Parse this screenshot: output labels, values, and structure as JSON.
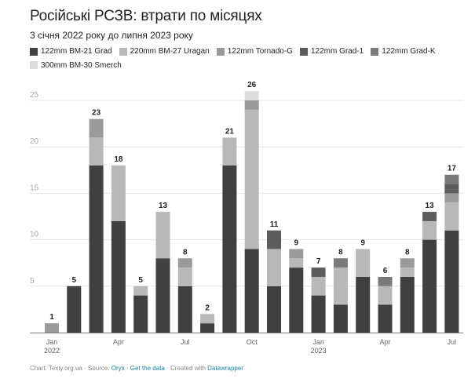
{
  "title": "Російські РСЗВ: втрати по місяцях",
  "subtitle": "3 січня 2022 року до липня 2023 року",
  "footer": {
    "chart_label": "Chart: Texty.org.ua",
    "source_prefix": "Source:",
    "source_link": "Oryx",
    "data_link": "Get the data",
    "created_prefix": "Created with",
    "created_link": "Datawrapper",
    "separator": "·"
  },
  "chart_data": {
    "type": "bar",
    "stacked": true,
    "title": "Російські РСЗВ: втрати по місяцях",
    "subtitle": "3 січня 2022 року до липня 2023 року",
    "xlabel": "",
    "ylabel": "",
    "ylim": [
      0,
      25
    ],
    "yticks": [
      5,
      10,
      15,
      20,
      25
    ],
    "grid": true,
    "legend_position": "top-left",
    "categories": [
      "Jan 2022",
      "Feb 2022",
      "Mar 2022",
      "Apr 2022",
      "May 2022",
      "Jun 2022",
      "Jul 2022",
      "Aug 2022",
      "Sep 2022",
      "Oct 2022",
      "Nov 2022",
      "Dec 2022",
      "Jan 2023",
      "Feb 2023",
      "Mar 2023",
      "Apr 2023",
      "May 2023",
      "Jun 2023",
      "Jul 2023"
    ],
    "xtick_labels": [
      {
        "index": 0,
        "line1": "Jan",
        "line2": "2022"
      },
      {
        "index": 3,
        "line1": "Apr",
        "line2": ""
      },
      {
        "index": 6,
        "line1": "Jul",
        "line2": ""
      },
      {
        "index": 9,
        "line1": "Oct",
        "line2": ""
      },
      {
        "index": 12,
        "line1": "Jan",
        "line2": "2023"
      },
      {
        "index": 15,
        "line1": "Apr",
        "line2": ""
      },
      {
        "index": 18,
        "line1": "Jul",
        "line2": ""
      }
    ],
    "series": [
      {
        "name": "122mm BM-21 Grad",
        "color": "#404040",
        "values": [
          0,
          5,
          18,
          12,
          4,
          8,
          5,
          1,
          18,
          9,
          5,
          7,
          4,
          3,
          6,
          3,
          6,
          10,
          11
        ]
      },
      {
        "name": "220mm BM-27 Uragan",
        "color": "#b8b8b8",
        "values": [
          0,
          0,
          3,
          6,
          1,
          5,
          2,
          1,
          3,
          15,
          4,
          1,
          2,
          4,
          3,
          2,
          1,
          2,
          3
        ]
      },
      {
        "name": "122mm Tornado-G",
        "color": "#9a9a9a",
        "values": [
          1,
          0,
          2,
          0,
          0,
          0,
          1,
          0,
          0,
          1,
          0,
          1,
          0,
          0,
          0,
          0,
          1,
          0,
          1
        ]
      },
      {
        "name": "122mm Grad-1",
        "color": "#5c5c5c",
        "values": [
          0,
          0,
          0,
          0,
          0,
          0,
          0,
          0,
          0,
          0,
          2,
          0,
          1,
          0,
          0,
          0,
          0,
          1,
          1
        ]
      },
      {
        "name": "122mm Grad-K",
        "color": "#7a7a7a",
        "values": [
          0,
          0,
          0,
          0,
          0,
          0,
          0,
          0,
          0,
          0,
          0,
          0,
          0,
          1,
          0,
          1,
          0,
          0,
          1
        ]
      },
      {
        "name": "300mm BM-30 Smerch",
        "color": "#dcdcdc",
        "values": [
          0,
          0,
          0,
          0,
          0,
          0,
          0,
          0,
          0,
          1,
          0,
          0,
          0,
          0,
          0,
          0,
          0,
          0,
          0
        ]
      }
    ],
    "totals": [
      1,
      5,
      23,
      18,
      5,
      13,
      8,
      2,
      21,
      26,
      11,
      9,
      7,
      8,
      9,
      6,
      8,
      13,
      17
    ]
  }
}
